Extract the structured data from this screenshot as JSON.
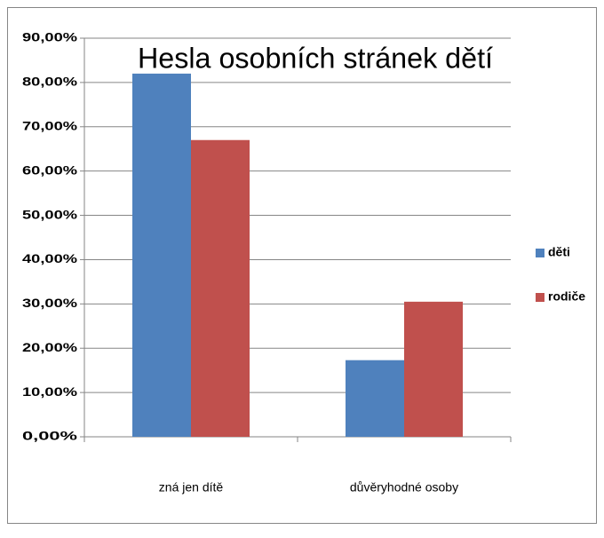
{
  "chart_data": {
    "type": "bar",
    "title": "Hesla osobních stránek dětí",
    "categories": [
      "zná jen dítě",
      "důvěryhodné osoby"
    ],
    "series": [
      {
        "name": "děti",
        "color": "#4f81bd",
        "values": [
          82,
          17.3
        ]
      },
      {
        "name": "rodiče",
        "color": "#c0504d",
        "values": [
          67,
          30.5
        ]
      }
    ],
    "ylim": [
      0,
      90
    ],
    "yticks": [
      {
        "value": 0,
        "label": "0,00%"
      },
      {
        "value": 10,
        "label": "10,00%"
      },
      {
        "value": 20,
        "label": "20,00%"
      },
      {
        "value": 30,
        "label": "30,00%"
      },
      {
        "value": 40,
        "label": "40,00%"
      },
      {
        "value": 50,
        "label": "50,00%"
      },
      {
        "value": 60,
        "label": "60,00%"
      },
      {
        "value": 70,
        "label": "70,00%"
      },
      {
        "value": 80,
        "label": "80,00%"
      },
      {
        "value": 90,
        "label": "90,00%"
      }
    ],
    "grid": true,
    "legend": "right"
  }
}
